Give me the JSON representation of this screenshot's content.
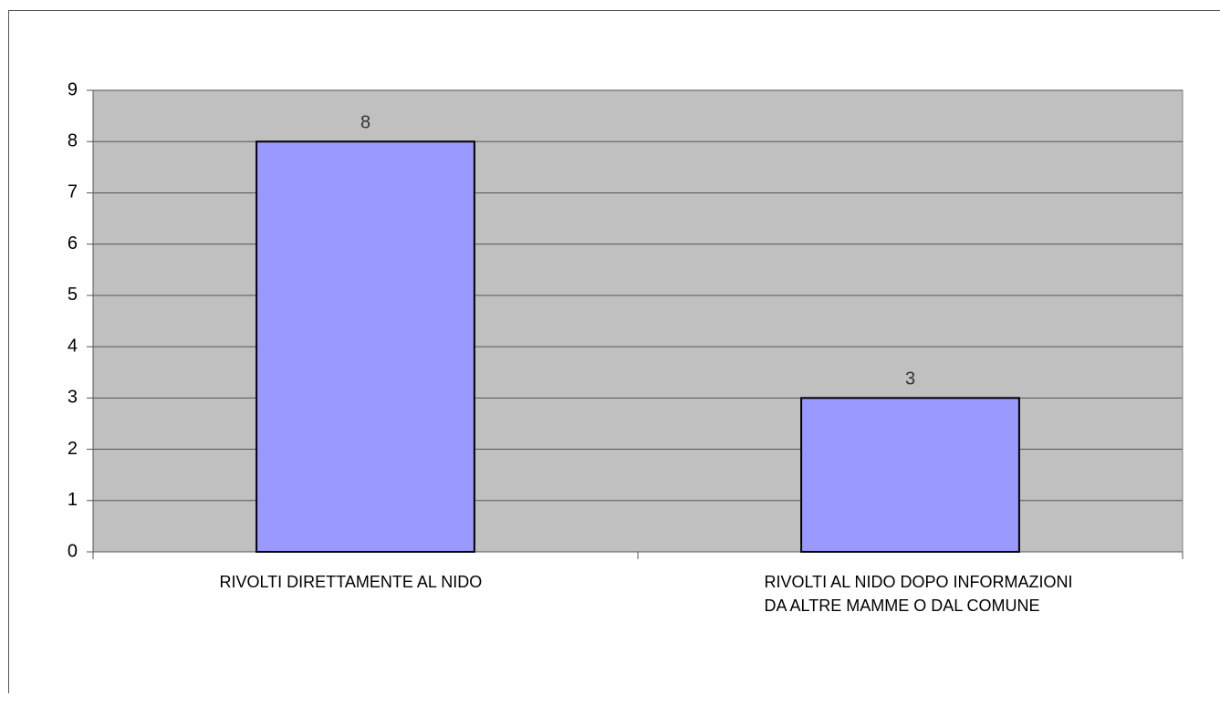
{
  "chart_data": {
    "type": "bar",
    "categories": [
      "RIVOLTI DIRETTAMENTE AL NIDO",
      "RIVOLTI AL NIDO DOPO INFORMAZIONI DA ALTRE MAMME O DAL COMUNE"
    ],
    "values": [
      8,
      3
    ],
    "color": "#9999ff",
    "ylim": [
      0,
      9
    ],
    "yticks": [
      0,
      1,
      2,
      3,
      4,
      5,
      6,
      7,
      8,
      9
    ],
    "grid": true,
    "plot_background": "#c0c0c0"
  }
}
